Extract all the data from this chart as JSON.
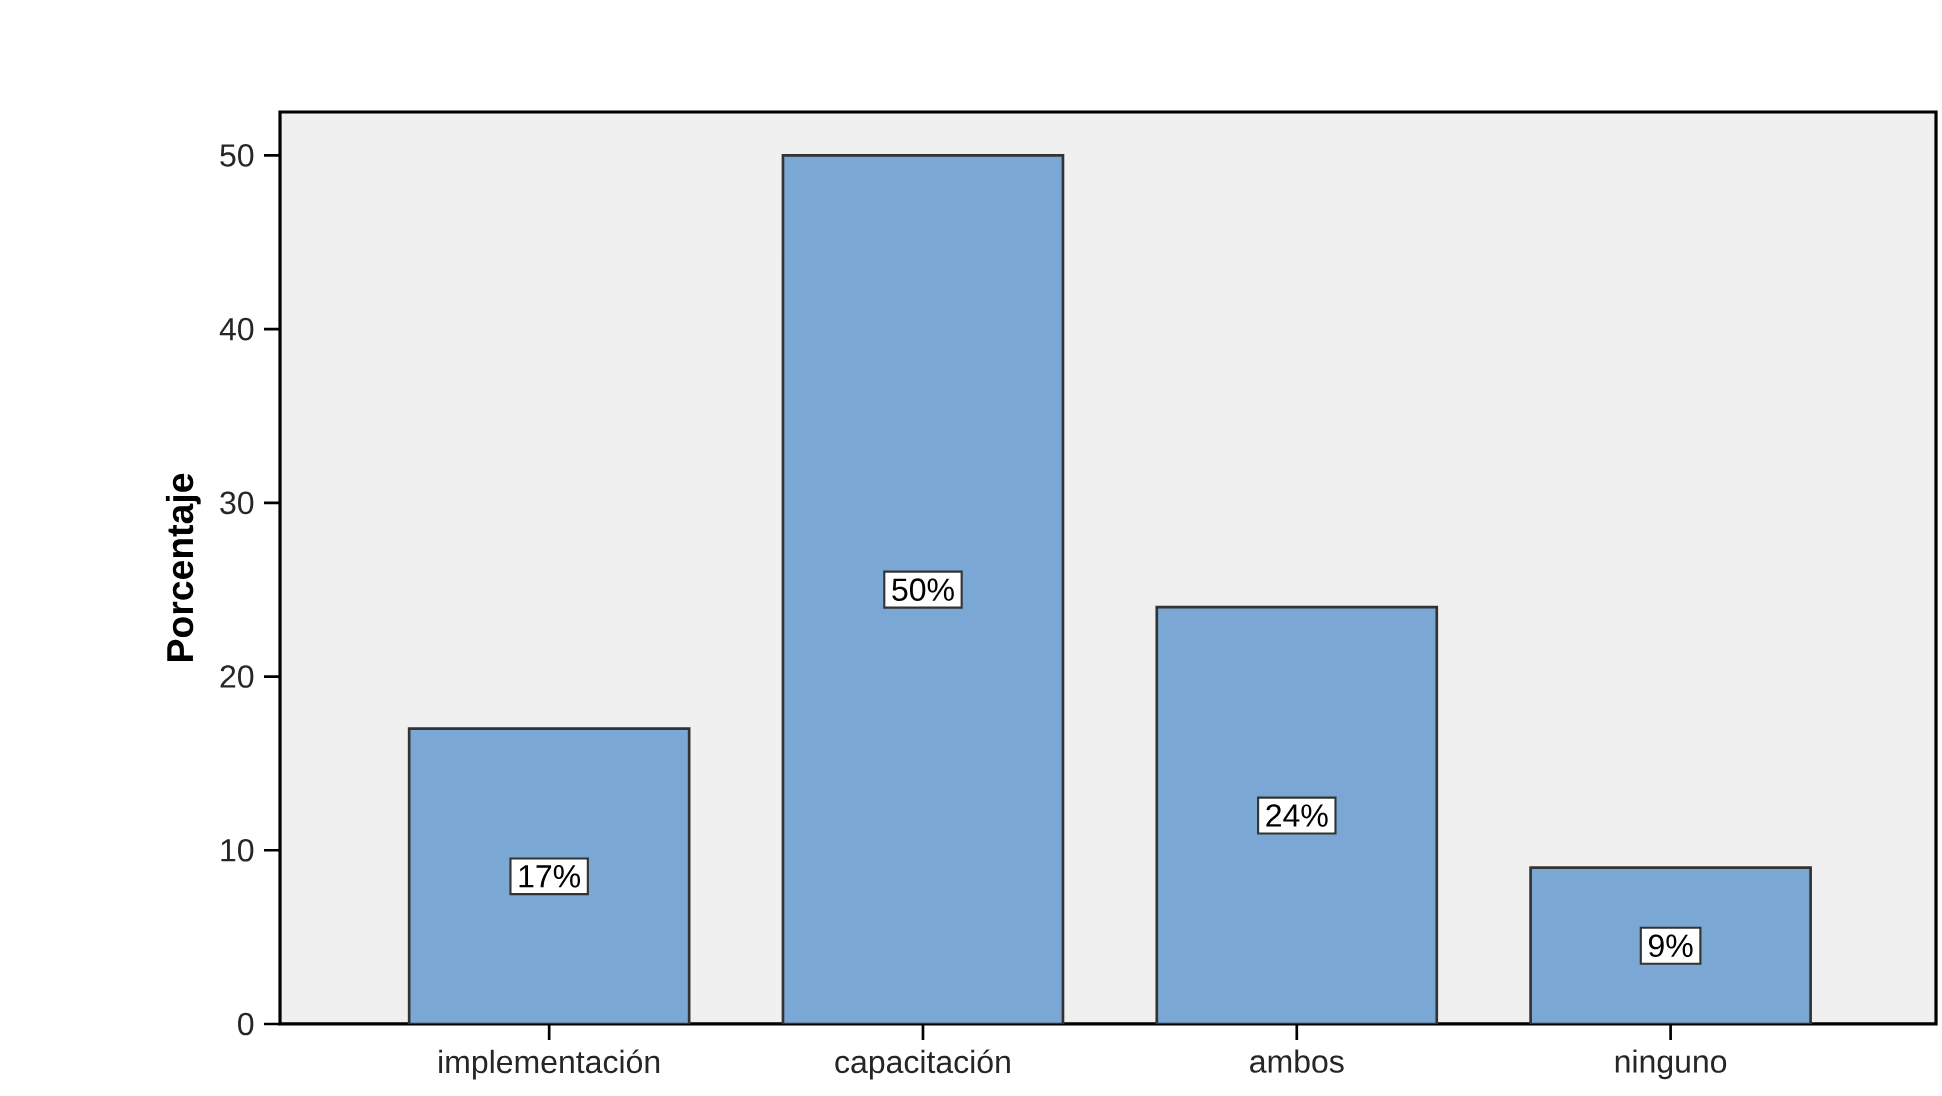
{
  "chart_data": {
    "type": "bar",
    "ylabel": "Porcentaje",
    "categories": [
      "implementación",
      "capacitación",
      "ambos",
      "ninguno"
    ],
    "values": [
      17,
      50,
      24,
      9
    ],
    "value_labels": [
      "17%",
      "50%",
      "24%",
      "9%"
    ],
    "color": "#7ba7d5",
    "ylim": [
      0,
      52.5
    ],
    "yticks": [
      0,
      10,
      20,
      30,
      40,
      50
    ],
    "grid": false
  }
}
